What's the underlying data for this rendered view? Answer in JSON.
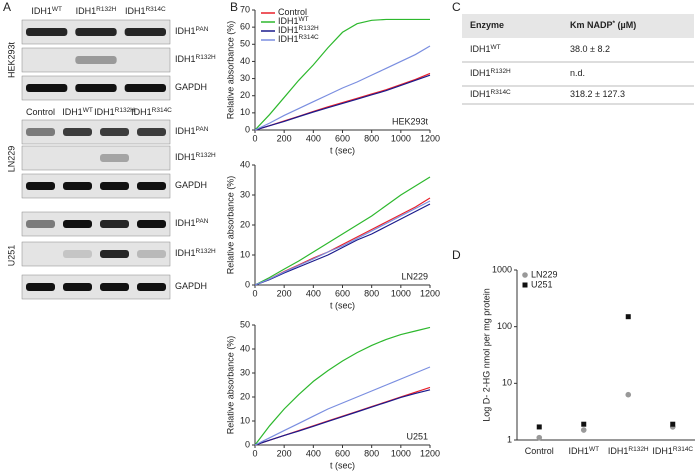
{
  "panel_labels": {
    "a": "A",
    "b": "B",
    "c": "C",
    "d": "D"
  },
  "blots": {
    "sections": [
      {
        "cell_line": "HEK293t",
        "columns": [
          {
            "text": "IDH1",
            "sup": "WT"
          },
          {
            "text": "IDH1",
            "sup": "R132H"
          },
          {
            "text": "IDH1",
            "sup": "R314C"
          }
        ],
        "rows": [
          {
            "text": "IDH1",
            "sup": "PAN"
          },
          {
            "text": "IDH1",
            "sup": "R132H"
          },
          {
            "text": "GAPDH"
          }
        ]
      },
      {
        "cell_line": "LN229",
        "columns": [
          {
            "text": "Control"
          },
          {
            "text": "IDH1",
            "sup": "WT"
          },
          {
            "text": "IDH1",
            "sup": "R132H"
          },
          {
            "text": "IDH1",
            "sup": "R314C"
          }
        ],
        "rows": [
          {
            "text": "IDH1",
            "sup": "PAN"
          },
          {
            "text": "IDH1",
            "sup": "R132H"
          },
          {
            "text": "GAPDH"
          }
        ]
      },
      {
        "cell_line": "U251",
        "rows": [
          {
            "text": "IDH1",
            "sup": "PAN"
          },
          {
            "text": "IDH1",
            "sup": "R132H"
          },
          {
            "text": "GAPDH"
          }
        ]
      }
    ]
  },
  "table": {
    "header": [
      {
        "text": "Enzyme"
      },
      {
        "text": "Km NADP",
        "sup": "*",
        "after": "(µM)"
      }
    ],
    "rows": [
      [
        {
          "text": "IDH1",
          "sup": "WT"
        },
        {
          "text": "38.0 ± 8.2"
        }
      ],
      [
        {
          "text": "IDH1",
          "sup": "R132H"
        },
        {
          "text": "n.d."
        }
      ],
      [
        {
          "text": "IDH1",
          "sup": "R314C"
        },
        {
          "text": "318.2 ± 127.3"
        }
      ]
    ]
  },
  "chart_data": [
    {
      "type": "line",
      "annotation": "HEK293t",
      "x_label": "t (sec)",
      "y_label": "Relative absorbance (%)",
      "x": [
        0,
        100,
        200,
        300,
        400,
        500,
        600,
        700,
        800,
        900,
        1000,
        1100,
        1200
      ],
      "xlim": [
        0,
        1200
      ],
      "xticks": [
        0,
        200,
        400,
        600,
        800,
        1000,
        1200
      ],
      "ylim": [
        0,
        70
      ],
      "yticks": [
        0,
        10,
        20,
        30,
        40,
        50,
        60,
        70
      ],
      "legend": "upper left",
      "series": [
        {
          "name": "Control",
          "color": "#e8202a",
          "values": [
            0,
            2.5,
            5.3,
            8,
            10.8,
            13.5,
            16,
            18.5,
            21,
            23.5,
            26.5,
            29.5,
            33
          ]
        },
        {
          "name": "IDH1",
          "sup": "WT",
          "color": "#2db82d",
          "values": [
            0,
            9,
            19,
            29,
            38,
            48,
            57,
            62,
            64,
            64.5,
            64.5,
            64.5,
            64.5
          ]
        },
        {
          "name": "IDH1",
          "sup": "R132H",
          "color": "#1a1a8c",
          "values": [
            0,
            2.5,
            5,
            7.8,
            10.5,
            13,
            15.5,
            18,
            20.5,
            23,
            26,
            29,
            32
          ]
        },
        {
          "name": "IDH1",
          "sup": "R314C",
          "color": "#7a8ee0",
          "values": [
            0,
            4,
            8.5,
            12.5,
            16.5,
            20.5,
            24.5,
            28,
            32,
            36,
            40,
            44,
            49
          ]
        }
      ]
    },
    {
      "type": "line",
      "annotation": "LN229",
      "x_label": "t (sec)",
      "y_label": "Relative absorbance (%)",
      "x": [
        0,
        100,
        200,
        300,
        400,
        500,
        600,
        700,
        800,
        900,
        1000,
        1100,
        1200
      ],
      "xlim": [
        0,
        1200
      ],
      "xticks": [
        0,
        200,
        400,
        600,
        800,
        1000,
        1200
      ],
      "ylim": [
        0,
        40
      ],
      "yticks": [
        0,
        10,
        20,
        30,
        40
      ],
      "series": [
        {
          "color": "#e8202a",
          "values": [
            0,
            2,
            4.5,
            6.7,
            9,
            11,
            13.5,
            16,
            18.5,
            21,
            23.5,
            26,
            29
          ]
        },
        {
          "color": "#2db82d",
          "values": [
            0,
            2.5,
            5.3,
            8,
            11,
            14,
            17,
            20,
            23,
            26.5,
            30,
            33,
            36
          ]
        },
        {
          "color": "#1a1a8c",
          "values": [
            0,
            1.8,
            4,
            6,
            8,
            10,
            12.5,
            15,
            17,
            19.5,
            22,
            24.5,
            27
          ]
        },
        {
          "color": "#7a8ee0",
          "values": [
            0,
            2,
            4.3,
            6.5,
            8.7,
            11,
            13,
            15.5,
            18,
            20.5,
            23,
            25.5,
            28
          ]
        }
      ]
    },
    {
      "type": "line",
      "annotation": "U251",
      "x_label": "t (sec)",
      "y_label": "Relative absorbance (%)",
      "x": [
        0,
        100,
        200,
        300,
        400,
        500,
        600,
        700,
        800,
        900,
        1000,
        1100,
        1200
      ],
      "xlim": [
        0,
        1200
      ],
      "xticks": [
        0,
        200,
        400,
        600,
        800,
        1000,
        1200
      ],
      "ylim": [
        0,
        50
      ],
      "yticks": [
        0,
        10,
        20,
        30,
        40,
        50
      ],
      "series": [
        {
          "color": "#e8202a",
          "values": [
            0,
            2,
            4,
            6,
            8,
            10,
            12,
            14,
            16,
            18,
            20,
            22,
            24
          ]
        },
        {
          "color": "#2db82d",
          "values": [
            0,
            8,
            15,
            21,
            26.5,
            31,
            35,
            38.5,
            41.5,
            44,
            46,
            47.5,
            49
          ]
        },
        {
          "color": "#1a1a8c",
          "values": [
            0,
            2,
            4,
            5.8,
            7.8,
            9.8,
            11.8,
            13.8,
            15.8,
            17.8,
            19.8,
            21.5,
            23
          ]
        },
        {
          "color": "#7a8ee0",
          "values": [
            0,
            3,
            6,
            9,
            12,
            15,
            17.5,
            20,
            22.5,
            25,
            27.5,
            30,
            32.5
          ]
        }
      ]
    },
    {
      "type": "scatter",
      "y_label": "Log D- 2-HG nmol per mg protein",
      "categories": [
        "Control",
        "IDH1",
        "IDH1",
        "IDH1"
      ],
      "category_sups": [
        null,
        "WT",
        "R132H",
        "R314C"
      ],
      "ylim": [
        1,
        1000
      ],
      "yticks": [
        1,
        10,
        100,
        1000
      ],
      "log_y": true,
      "legend": "upper left",
      "series": [
        {
          "name": "LN229",
          "color": "#999999",
          "marker": "circle",
          "values": [
            1.1,
            1.5,
            6.3,
            1.7
          ]
        },
        {
          "name": "U251",
          "color": "#111111",
          "marker": "square",
          "values": [
            1.7,
            1.9,
            150,
            1.9
          ]
        }
      ]
    }
  ]
}
